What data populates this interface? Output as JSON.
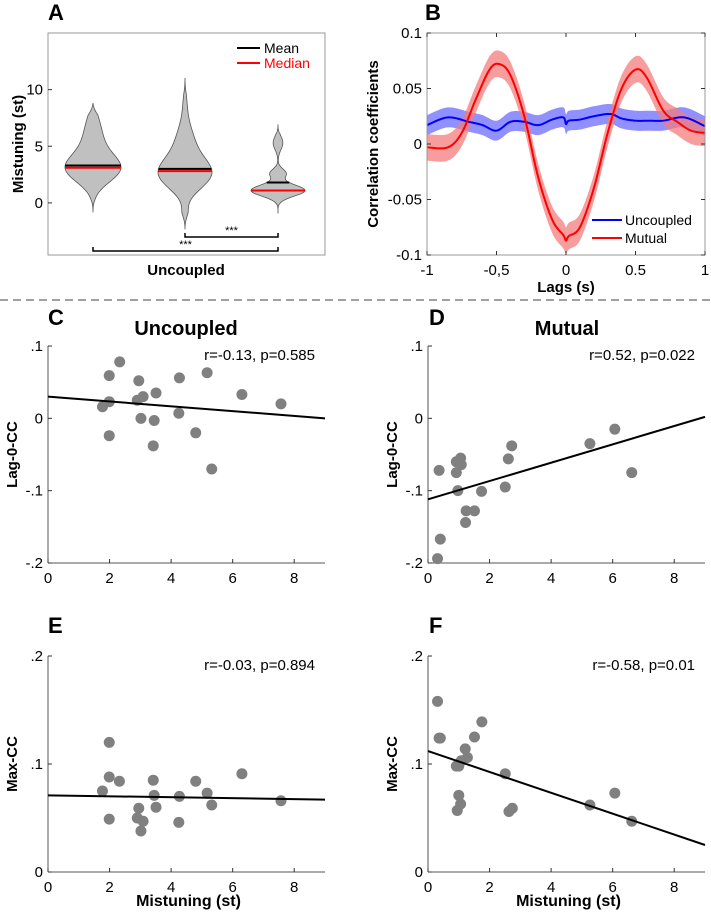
{
  "separator": {
    "style": "dashed",
    "color": "#808080"
  },
  "chart_data": [
    {
      "panel_label": "A",
      "type": "violin",
      "xlabel": "Uncoupled",
      "ylabel": "Mistuning (st)",
      "ylim": [
        -4.6,
        15
      ],
      "yticks": [
        0,
        5,
        10
      ],
      "ytick_labels": [
        "0",
        "5",
        "10"
      ],
      "legend": [
        {
          "name": "Mean",
          "color": "#000000"
        },
        {
          "name": "Median",
          "color": "#ff0000"
        }
      ],
      "legend_position": "top-right",
      "violins": [
        {
          "mean": 3.3,
          "median": 3.1,
          "min": -0.8,
          "max": 8.8
        },
        {
          "mean": 3.0,
          "median": 2.8,
          "min": -2.3,
          "max": 11.0
        },
        {
          "mean": 1.8,
          "median": 1.1,
          "min": -0.9,
          "max": 6.9
        }
      ],
      "significance": [
        {
          "from": 2,
          "to": 3,
          "label": "***"
        },
        {
          "from": 1,
          "to": 3,
          "label": "***"
        }
      ],
      "colors": {
        "fill": "#c0c0c0",
        "outline": "#555555"
      }
    },
    {
      "panel_label": "B",
      "type": "line",
      "xlabel": "Lags (s)",
      "ylabel": "Correlation coefficients",
      "xlim": [
        -1,
        1
      ],
      "ylim": [
        -0.1,
        0.1
      ],
      "xticks": [
        -1,
        -0.5,
        0,
        0.5,
        1
      ],
      "xtick_labels": [
        "-1",
        "-0,5",
        "0",
        "0.5",
        "1"
      ],
      "yticks": [
        -0.1,
        -0.05,
        0,
        0.05,
        0.1
      ],
      "ytick_labels": [
        "-0.1",
        "-0.05",
        "0",
        "0.05",
        "0.1"
      ],
      "legend_position": "bottom-right",
      "series": [
        {
          "name": "Uncoupled",
          "color": "#0000ff",
          "band_color": "#6b6bff",
          "x": [
            -1,
            -0.85,
            -0.7,
            -0.6,
            -0.5,
            -0.4,
            -0.3,
            -0.2,
            -0.1,
            -0.02,
            0,
            0.02,
            0.1,
            0.2,
            0.32,
            0.4,
            0.5,
            0.6,
            0.7,
            0.85,
            1
          ],
          "y": [
            0.017,
            0.024,
            0.02,
            0.017,
            0.012,
            0.02,
            0.02,
            0.017,
            0.022,
            0.024,
            0.018,
            0.021,
            0.022,
            0.025,
            0.027,
            0.023,
            0.021,
            0.021,
            0.021,
            0.024,
            0.016
          ],
          "ci": 0.009
        },
        {
          "name": "Mutual",
          "color": "#ff0000",
          "band_color": "#f47c7c",
          "x": [
            -1,
            -0.85,
            -0.75,
            -0.65,
            -0.55,
            -0.48,
            -0.4,
            -0.3,
            -0.2,
            -0.1,
            -0.02,
            0,
            0.02,
            0.1,
            0.2,
            0.3,
            0.4,
            0.5,
            0.58,
            0.7,
            0.8,
            0.9,
            1
          ],
          "y": [
            -0.003,
            -0.003,
            0.01,
            0.04,
            0.067,
            0.072,
            0.062,
            0.025,
            -0.03,
            -0.068,
            -0.082,
            -0.087,
            -0.083,
            -0.075,
            -0.04,
            0.01,
            0.05,
            0.067,
            0.06,
            0.03,
            0.02,
            0.012,
            0.01
          ],
          "ci": 0.012
        }
      ]
    },
    {
      "panel_label": "C",
      "type": "scatter",
      "title": "Uncoupled",
      "annotation": "r=-0.13, p=0.585",
      "ylabel": "Lag-0-CC",
      "xlim": [
        0,
        9
      ],
      "ylim": [
        -0.2,
        0.1
      ],
      "xticks": [
        0,
        2,
        4,
        6,
        8
      ],
      "xtick_labels": [
        "0",
        "2",
        "4",
        "6",
        "8"
      ],
      "yticks": [
        -0.2,
        -0.1,
        0,
        0.1
      ],
      "ytick_labels": [
        "-.2",
        "-.1",
        "0",
        ".1"
      ],
      "points": [
        [
          2.33,
          0.078
        ],
        [
          1.99,
          0.059
        ],
        [
          2.95,
          0.052
        ],
        [
          4.27,
          0.056
        ],
        [
          5.17,
          0.063
        ],
        [
          1.77,
          0.016
        ],
        [
          1.99,
          0.023
        ],
        [
          2.9,
          0.025
        ],
        [
          3.09,
          0.03
        ],
        [
          3.51,
          0.035
        ],
        [
          6.3,
          0.033
        ],
        [
          7.57,
          0.02
        ],
        [
          3.02,
          0.0
        ],
        [
          3.45,
          -0.003
        ],
        [
          4.25,
          0.007
        ],
        [
          1.99,
          -0.024
        ],
        [
          3.42,
          -0.038
        ],
        [
          4.8,
          -0.02
        ],
        [
          5.32,
          -0.07
        ]
      ],
      "fit": {
        "x": [
          0,
          9
        ],
        "y": [
          0.03,
          0.0
        ]
      },
      "colors": {
        "points": "#808080",
        "fit": "#000000"
      }
    },
    {
      "panel_label": "D",
      "type": "scatter",
      "title": "Mutual",
      "annotation": "r=0.52, p=0.022",
      "ylabel": "Lag-0-CC",
      "xlim": [
        0,
        9
      ],
      "ylim": [
        -0.2,
        0.1
      ],
      "xticks": [
        0,
        2,
        4,
        6,
        8
      ],
      "xtick_labels": [
        "0",
        "2",
        "4",
        "6",
        "8"
      ],
      "yticks": [
        -0.2,
        -0.1,
        0,
        0.1
      ],
      "ytick_labels": [
        "-.2",
        "-.1",
        "0",
        ".1"
      ],
      "points": [
        [
          0.36,
          -0.072
        ],
        [
          0.92,
          -0.075
        ],
        [
          0.92,
          -0.06
        ],
        [
          1.06,
          -0.055
        ],
        [
          1.08,
          -0.064
        ],
        [
          0.97,
          -0.1
        ],
        [
          1.24,
          -0.128
        ],
        [
          1.51,
          -0.128
        ],
        [
          1.22,
          -0.144
        ],
        [
          1.74,
          -0.101
        ],
        [
          0.4,
          -0.167
        ],
        [
          0.31,
          -0.194
        ],
        [
          2.51,
          -0.095
        ],
        [
          2.61,
          -0.056
        ],
        [
          2.72,
          -0.038
        ],
        [
          5.26,
          -0.035
        ],
        [
          6.07,
          -0.015
        ],
        [
          6.62,
          -0.075
        ]
      ],
      "fit": {
        "x": [
          0,
          9
        ],
        "y": [
          -0.112,
          0.002
        ]
      },
      "colors": {
        "points": "#808080",
        "fit": "#000000"
      }
    },
    {
      "panel_label": "E",
      "type": "scatter",
      "annotation": "r=-0.03, p=0.894",
      "xlabel": "Mistuning (st)",
      "ylabel": "Max-CC",
      "xlim": [
        0,
        9
      ],
      "ylim": [
        0,
        0.2
      ],
      "xticks": [
        0,
        2,
        4,
        6,
        8
      ],
      "xtick_labels": [
        "0",
        "2",
        "4",
        "6",
        "8"
      ],
      "yticks": [
        0,
        0.1,
        0.2
      ],
      "ytick_labels": [
        "0",
        ".1",
        ".2"
      ],
      "points": [
        [
          1.99,
          0.12
        ],
        [
          1.99,
          0.088
        ],
        [
          1.77,
          0.075
        ],
        [
          2.32,
          0.084
        ],
        [
          1.99,
          0.049
        ],
        [
          2.95,
          0.059
        ],
        [
          2.9,
          0.05
        ],
        [
          3.09,
          0.047
        ],
        [
          3.02,
          0.038
        ],
        [
          3.42,
          0.085
        ],
        [
          3.45,
          0.071
        ],
        [
          3.51,
          0.06
        ],
        [
          4.27,
          0.07
        ],
        [
          4.25,
          0.046
        ],
        [
          4.8,
          0.084
        ],
        [
          5.17,
          0.073
        ],
        [
          5.32,
          0.062
        ],
        [
          6.3,
          0.091
        ],
        [
          7.57,
          0.066
        ]
      ],
      "fit": {
        "x": [
          0,
          9
        ],
        "y": [
          0.071,
          0.067
        ]
      },
      "colors": {
        "points": "#808080",
        "fit": "#000000"
      }
    },
    {
      "panel_label": "F",
      "type": "scatter",
      "annotation": "r=-0.58, p=0.01",
      "xlabel": "Mistuning (st)",
      "ylabel": "Max-CC",
      "xlim": [
        0,
        9
      ],
      "ylim": [
        0,
        0.2
      ],
      "xticks": [
        0,
        2,
        4,
        6,
        8
      ],
      "xtick_labels": [
        "0",
        "2",
        "4",
        "6",
        "8"
      ],
      "yticks": [
        0,
        0.1,
        0.2
      ],
      "ytick_labels": [
        "0",
        ".1",
        ".2"
      ],
      "points": [
        [
          0.31,
          0.158
        ],
        [
          0.36,
          0.124
        ],
        [
          0.4,
          0.124
        ],
        [
          1.75,
          0.139
        ],
        [
          1.51,
          0.125
        ],
        [
          1.21,
          0.114
        ],
        [
          1.28,
          0.106
        ],
        [
          1.08,
          0.103
        ],
        [
          0.92,
          0.098
        ],
        [
          1.0,
          0.098
        ],
        [
          1.0,
          0.071
        ],
        [
          1.06,
          0.063
        ],
        [
          0.95,
          0.057
        ],
        [
          2.51,
          0.091
        ],
        [
          2.63,
          0.056
        ],
        [
          2.74,
          0.059
        ],
        [
          5.26,
          0.062
        ],
        [
          6.07,
          0.073
        ],
        [
          6.62,
          0.047
        ]
      ],
      "fit": {
        "x": [
          0,
          9
        ],
        "y": [
          0.112,
          0.025
        ]
      },
      "colors": {
        "points": "#808080",
        "fit": "#000000"
      }
    }
  ]
}
